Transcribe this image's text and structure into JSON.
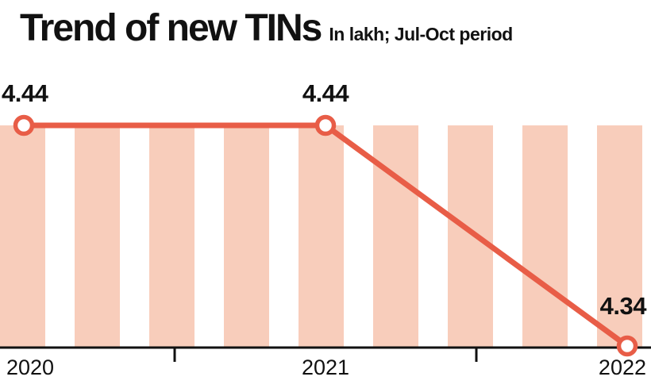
{
  "chart_data": {
    "type": "line",
    "title": "Trend of new TINs",
    "subtitle": "In lakh; Jul-Oct period",
    "categories": [
      "2020",
      "2021",
      "2022"
    ],
    "values": [
      4.44,
      4.44,
      4.34
    ],
    "point_labels": [
      "4.44",
      "4.44",
      "4.34"
    ],
    "ylim": [
      4.34,
      4.44
    ],
    "xlabel": "",
    "ylabel": "",
    "legend": "none",
    "grid": "vertical-stripes-background",
    "colors": {
      "line": "#e85d47",
      "marker_fill": "#ffffff",
      "stripe": "#f8cdbb",
      "axis": "#111111",
      "text": "#111111"
    }
  }
}
